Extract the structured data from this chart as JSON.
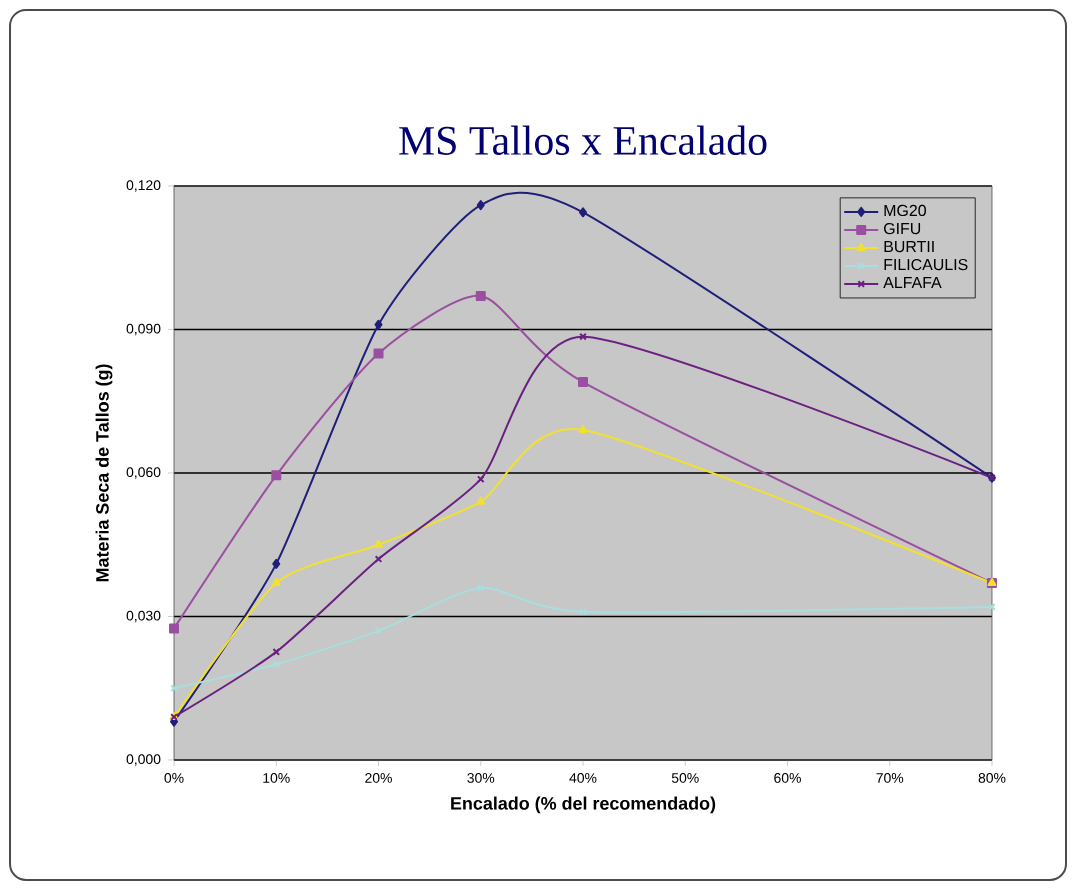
{
  "chart_data": {
    "type": "line",
    "title": "MS Tallos x Encalado",
    "xlabel": "Encalado (% del recomendado)",
    "ylabel": "Materia Seca de Tallos (g)",
    "x": [
      0,
      10,
      20,
      30,
      40,
      80
    ],
    "series": [
      {
        "name": "MG20",
        "color": "#1f1f7a",
        "marker": "diamond",
        "values": [
          0.008,
          0.041,
          0.091,
          0.116,
          0.1145,
          0.059
        ]
      },
      {
        "name": "GIFU",
        "color": "#9b4fa0",
        "marker": "square",
        "values": [
          0.0275,
          0.0595,
          0.085,
          0.097,
          0.079,
          0.037
        ]
      },
      {
        "name": "BURTII",
        "color": "#f2e030",
        "marker": "triangle",
        "values": [
          0.009,
          0.037,
          0.045,
          0.054,
          0.069,
          0.037
        ]
      },
      {
        "name": "FILICAULIS",
        "color": "#a8dede",
        "marker": "cross",
        "values": [
          0.015,
          0.02,
          0.027,
          0.036,
          0.031,
          0.032
        ]
      },
      {
        "name": "ALFAFA",
        "color": "#6a2080",
        "marker": "cross",
        "values": [
          0.009,
          0.0226,
          0.042,
          0.0587,
          0.0885,
          0.059
        ]
      }
    ],
    "xlim": [
      0,
      80
    ],
    "xticks": [
      {
        "value": 0,
        "label": "0%"
      },
      {
        "value": 10,
        "label": "10%"
      },
      {
        "value": 20,
        "label": "20%"
      },
      {
        "value": 30,
        "label": "30%"
      },
      {
        "value": 40,
        "label": "40%"
      },
      {
        "value": 50,
        "label": "50%"
      },
      {
        "value": 60,
        "label": "60%"
      },
      {
        "value": 70,
        "label": "70%"
      },
      {
        "value": 80,
        "label": "80%"
      }
    ],
    "ylim": [
      0,
      0.12
    ],
    "yticks": [
      {
        "value": 0,
        "label": "0,000"
      },
      {
        "value": 0.03,
        "label": "0,030"
      },
      {
        "value": 0.06,
        "label": "0,060"
      },
      {
        "value": 0.09,
        "label": "0,090"
      },
      {
        "value": 0.12,
        "label": "0,120"
      }
    ],
    "grid": "y",
    "legend": "top right"
  }
}
